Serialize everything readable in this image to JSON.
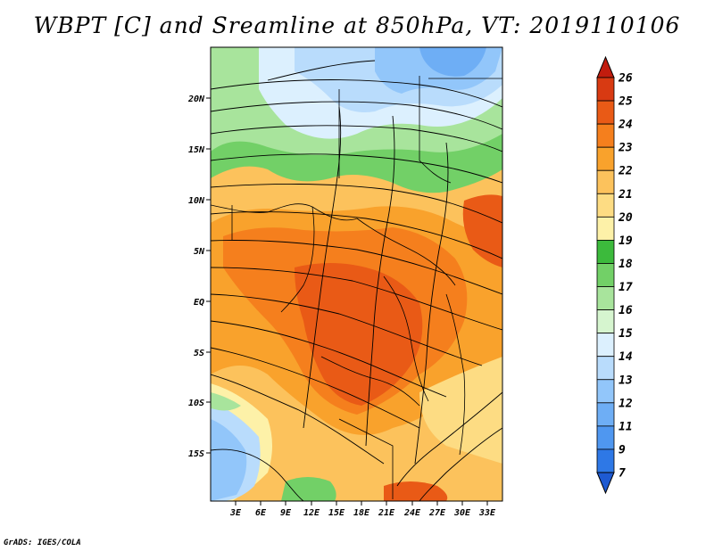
{
  "title": "WBPT [C] and Sreamline at 850hPa, VT: 2019110106",
  "credit": "GrADS: IGES/COLA",
  "map": {
    "lat_ticks": [
      "20N",
      "15N",
      "10N",
      "5N",
      "EQ",
      "5S",
      "10S",
      "15S"
    ],
    "lon_ticks": [
      "3E",
      "6E",
      "9E",
      "12E",
      "15E",
      "18E",
      "21E",
      "24E",
      "27E",
      "30E",
      "33E"
    ]
  },
  "colorbar": {
    "labels": [
      "7",
      "9",
      "11",
      "12",
      "13",
      "14",
      "15",
      "16",
      "17",
      "18",
      "19",
      "20",
      "21",
      "22",
      "23",
      "24",
      "25",
      "26"
    ],
    "colors": [
      "#1e5ad2",
      "#2e78e6",
      "#4f97f0",
      "#6eaef5",
      "#92c6fa",
      "#b9dcfc",
      "#dcf0fe",
      "#d6f5cf",
      "#a8e49c",
      "#72d067",
      "#3cba3c",
      "#fdf1a8",
      "#fddc83",
      "#fcc25c",
      "#f9a22c",
      "#f57f1d",
      "#e95a16",
      "#d83a12",
      "#c11c0e"
    ]
  }
}
